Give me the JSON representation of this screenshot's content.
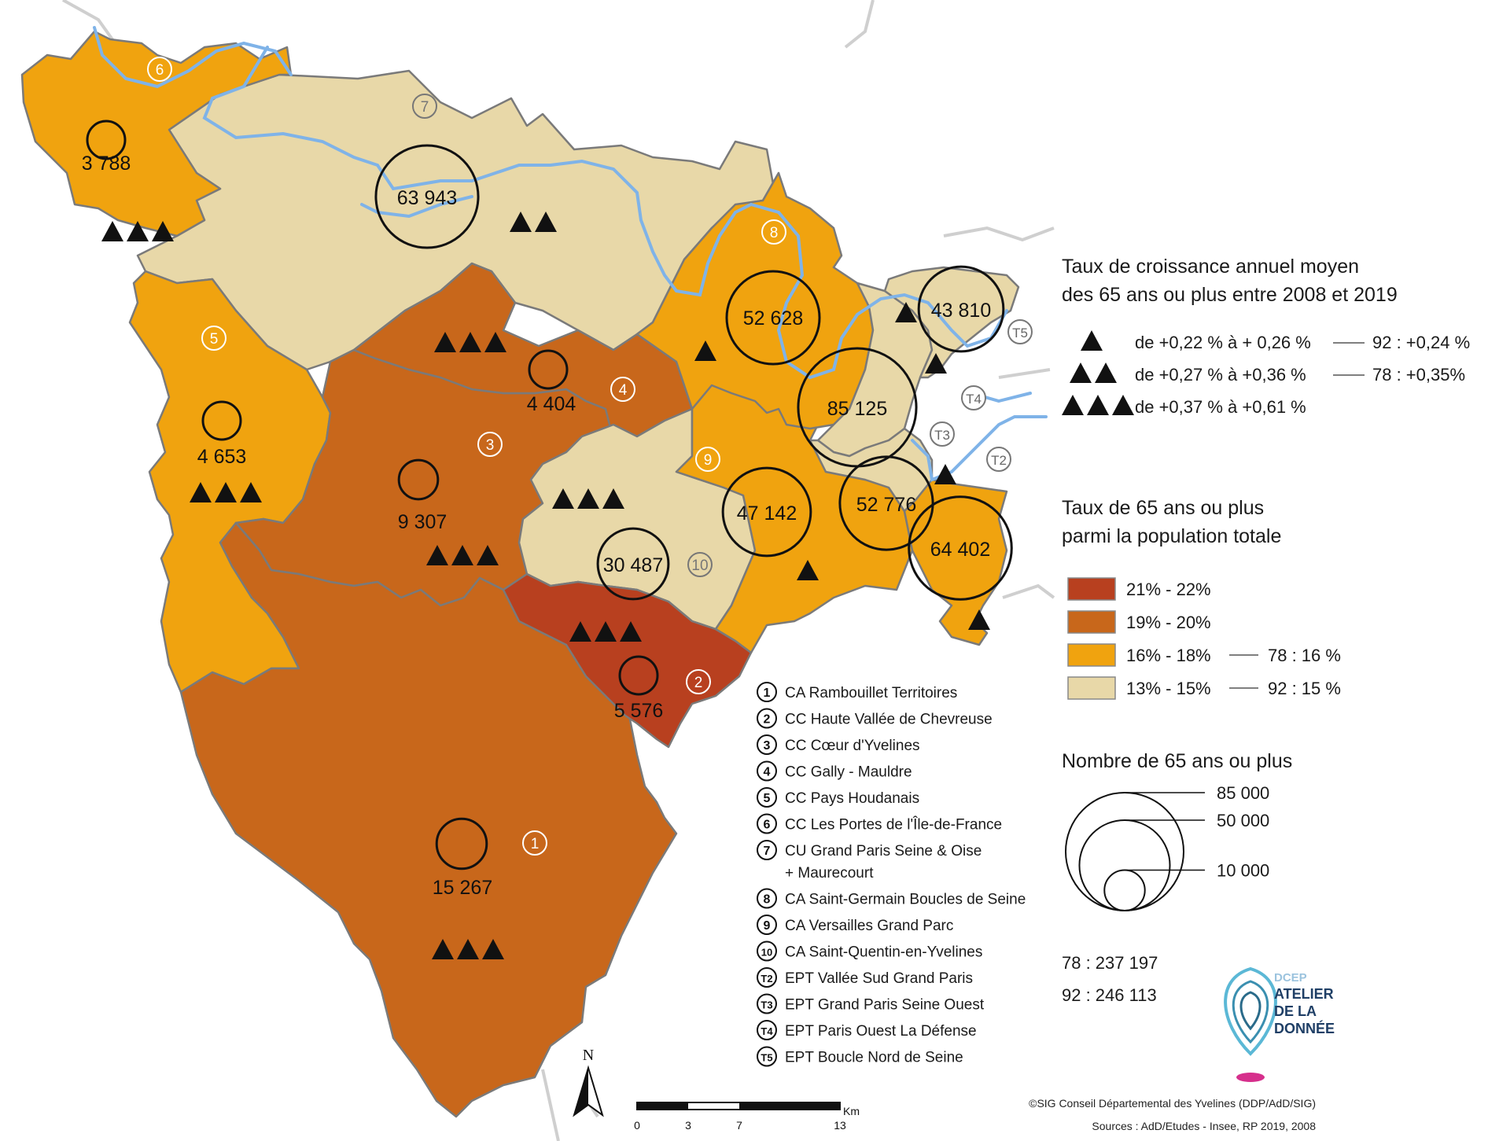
{
  "legend": {
    "growth_title_line1": "Taux de croissance annuel moyen",
    "growth_title_line2": "des 65 ans ou plus entre 2008 et 2019",
    "growth_classes": [
      {
        "symbol": "▲",
        "label": "de +0,22 % à + 0,26 %",
        "ref": "92 : +0,24 %",
        "ref_color": "#3f9a2f"
      },
      {
        "symbol": "▲▲",
        "label": "de +0,27 % à +0,36 %",
        "ref": "78 : +0,35%",
        "ref_color": "#c0238e"
      },
      {
        "symbol": "▲▲▲",
        "label": "de +0,37 % à +0,61 %",
        "ref": "",
        "ref_color": ""
      }
    ],
    "rate_title_line1": "Taux de 65 ans ou plus",
    "rate_title_line2": "parmi la population totale",
    "rate_classes": [
      {
        "color": "#b8401f",
        "label": "21% - 22%",
        "ref": "",
        "ref_color": ""
      },
      {
        "color": "#c8671b",
        "label": "19% - 20%",
        "ref": "",
        "ref_color": ""
      },
      {
        "color": "#f0a30f",
        "label": "16% - 18%",
        "ref": "78 : 16 %",
        "ref_color": "#c0238e"
      },
      {
        "color": "#e8d8a8",
        "label": "13% - 15%",
        "ref": "92 : 15 %",
        "ref_color": "#3f9a2f"
      }
    ],
    "count_title": "Nombre de 65 ans ou plus",
    "count_values": [
      85000,
      50000,
      10000
    ],
    "count_labels": [
      "85 000",
      "50 000",
      "10 000"
    ],
    "totals": [
      {
        "text": "78 : 237 197",
        "color": "#c0238e"
      },
      {
        "text": "92 : 246 113",
        "color": "#3f9a2f"
      }
    ]
  },
  "territories": [
    {
      "num": "1",
      "name": "CA Rambouillet Territoires"
    },
    {
      "num": "2",
      "name": "CC Haute Vallée de Chevreuse"
    },
    {
      "num": "3",
      "name": "CC Cœur d'Yvelines"
    },
    {
      "num": "4",
      "name": "CC Gally - Mauldre"
    },
    {
      "num": "5",
      "name": "CC Pays Houdanais"
    },
    {
      "num": "6",
      "name": "CC Les Portes de l'Île-de-France"
    },
    {
      "num": "7",
      "name": "CU Grand Paris Seine & Oise",
      "name2": "+ Maurecourt"
    },
    {
      "num": "8",
      "name": "CA Saint-Germain Boucles de Seine"
    },
    {
      "num": "9",
      "name": "CA Versailles Grand Parc"
    },
    {
      "num": "10",
      "name": "CA Saint-Quentin-en-Yvelines"
    },
    {
      "num": "T2",
      "name": "EPT Vallée Sud Grand Paris"
    },
    {
      "num": "T3",
      "name": "EPT Grand Paris Seine Ouest"
    },
    {
      "num": "T4",
      "name": "EPT Paris Ouest La Défense"
    },
    {
      "num": "T5",
      "name": "EPT Boucle Nord de Seine"
    }
  ],
  "map_counts": [
    {
      "id": "6",
      "value": 3788,
      "label": "3 788",
      "growth": 3
    },
    {
      "id": "7",
      "value": 63943,
      "label": "63 943",
      "growth": 2
    },
    {
      "id": "5",
      "value": 4653,
      "label": "4 653",
      "growth": 3
    },
    {
      "id": "4",
      "value": 4404,
      "label": "4 404",
      "growth": 3
    },
    {
      "id": "3",
      "value": 9307,
      "label": "9 307",
      "growth": 3
    },
    {
      "id": "8",
      "value": 52628,
      "label": "52 628",
      "growth": 1
    },
    {
      "id": "T5",
      "value": 43810,
      "label": "43 810",
      "growth": 1
    },
    {
      "id": "T4",
      "value": 85125,
      "label": "85 125",
      "growth": 1
    },
    {
      "id": "9",
      "value": 47142,
      "label": "47 142",
      "growth": 1
    },
    {
      "id": "T3",
      "value": 52776,
      "label": "52 776",
      "growth": 1
    },
    {
      "id": "T2",
      "value": 64402,
      "label": "64 402",
      "growth": 1
    },
    {
      "id": "10",
      "value": 30487,
      "label": "30 487",
      "growth": 3
    },
    {
      "id": "2",
      "value": 5576,
      "label": "5 576",
      "growth": 3
    },
    {
      "id": "1",
      "value": 15267,
      "label": "15 267",
      "growth": 3
    }
  ],
  "north": "N",
  "scale": {
    "unit": "Km",
    "ticks": [
      "0",
      "3",
      "7",
      "13"
    ]
  },
  "logo": {
    "line1": "DCEP",
    "line2": "ATELIER",
    "line3": "DE LA",
    "line4": "DONNÉE"
  },
  "credits": {
    "line1": "©SIG Conseil Départemental des Yvelines (DDP/AdD/SIG)",
    "line2": "Sources : AdD/Etudes - Insee, RP 2019, 2008"
  },
  "colors": {
    "rate_21_22": "#b8401f",
    "rate_19_20": "#c8671b",
    "rate_16_18": "#f0a30f",
    "rate_13_15": "#e8d8a8",
    "river": "#7fb3e8",
    "boundary": "#7a7a7a"
  }
}
